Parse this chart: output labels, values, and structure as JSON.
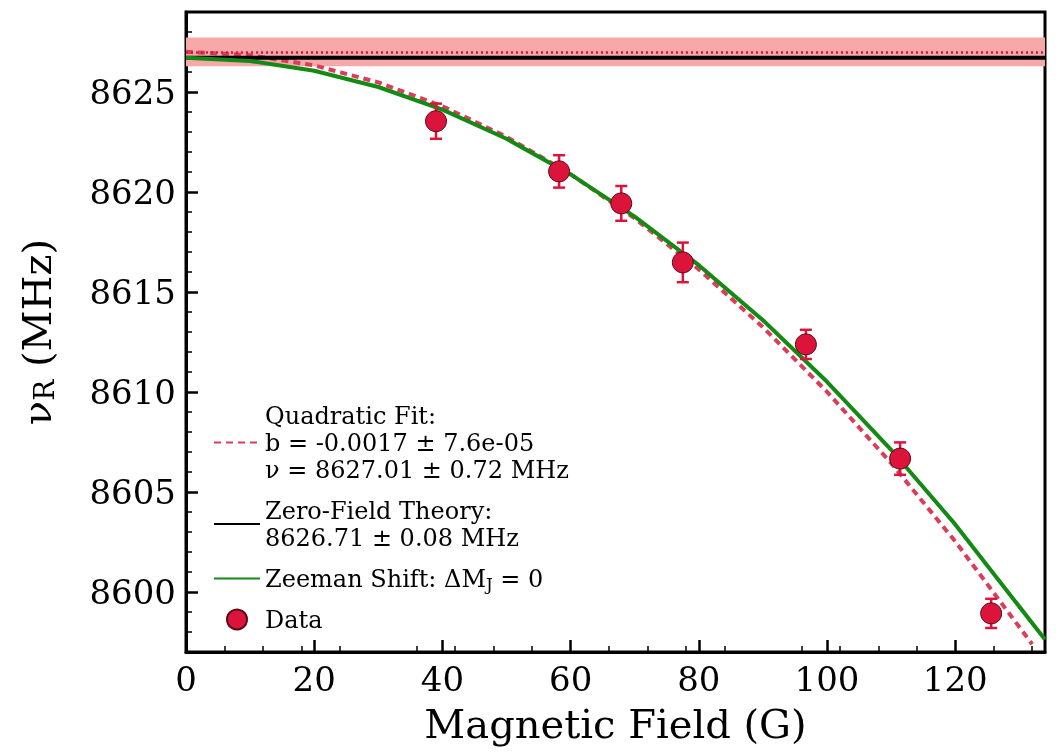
{
  "chart_data": {
    "type": "line",
    "xlabel": "Magnetic Field (G)",
    "ylabel": "ν$_{R}$ (MHz)",
    "xlim": [
      0,
      134
    ],
    "ylim": [
      8597,
      8629
    ],
    "xticks": [
      0,
      20,
      40,
      60,
      80,
      100,
      120
    ],
    "yticks": [
      8600,
      8605,
      8610,
      8615,
      8620,
      8625
    ],
    "legend": "bottom left",
    "series": [
      {
        "name": "Quadratic Fit:\nb = -0.0017 ± 7.6e-05\nν = 8627.01 ± 0.72 MHz",
        "line_style": "dashed",
        "color": "#dc3c5a",
        "x": [
          0,
          10,
          20,
          30,
          40,
          50,
          60,
          70,
          80,
          90,
          100,
          110,
          120,
          132
        ],
        "values": [
          8627.01,
          8626.84,
          8626.33,
          8625.48,
          8624.29,
          8622.76,
          8620.89,
          8618.68,
          8616.13,
          8613.24,
          8610.01,
          8606.44,
          8602.53,
          8597.39
        ]
      },
      {
        "name": "Zero-Field Theory:\n8626.71 ± 0.08 MHz",
        "line_style": "solid",
        "color": "#000000",
        "x": [
          0,
          134
        ],
        "values": [
          8626.71,
          8626.71
        ]
      },
      {
        "name": "Zeeman Shift: ΔM$_{J}$ = 0",
        "line_style": "solid",
        "color": "#138a13",
        "x": [
          0,
          10,
          20,
          30,
          40,
          50,
          60,
          70,
          80,
          90,
          100,
          110,
          120,
          134
        ],
        "values": [
          8626.71,
          8626.55,
          8626.06,
          8625.25,
          8624.12,
          8622.66,
          8620.88,
          8618.77,
          8616.34,
          8613.59,
          8610.51,
          8607.11,
          8603.38,
          8597.62
        ]
      },
      {
        "name": "Data",
        "type": "scatter",
        "marker": "circle",
        "color": "#dc143c",
        "x": [
          39.0,
          58.2,
          67.9,
          77.5,
          96.7,
          111.4,
          125.6
        ],
        "values": [
          8623.54,
          8621.03,
          8619.43,
          8616.48,
          8612.38,
          8606.67,
          8598.93
        ],
        "errors": [
          0.88,
          0.81,
          0.87,
          0.99,
          0.73,
          0.81,
          0.73
        ]
      }
    ],
    "ref_lines": [
      {
        "axis": "y",
        "value": 8627.01,
        "color": "#dc143c",
        "line_style": "dotted"
      }
    ],
    "bands": [
      {
        "axis": "y",
        "from": 8626.29,
        "to": 8627.73,
        "color": "#f7a8a8"
      }
    ]
  }
}
